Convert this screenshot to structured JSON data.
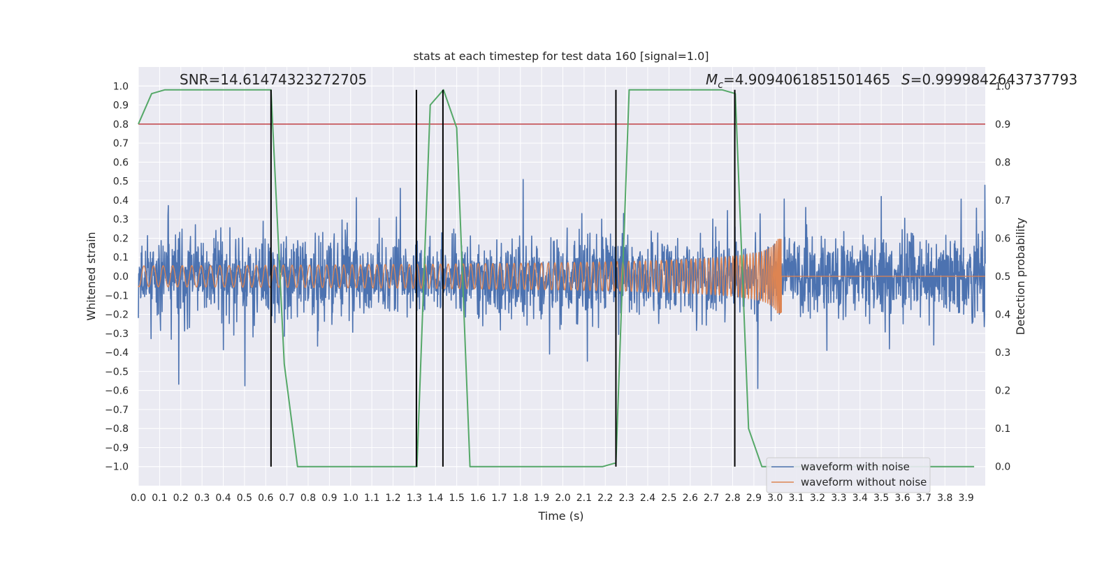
{
  "chart_data": {
    "type": "line",
    "title": "stats at each timestep for test data 160 [signal=1.0]",
    "xlabel": "Time (s)",
    "ylabel_left": "Whitened strain",
    "ylabel_right": "Detection probability",
    "xlim": [
      0.0,
      3.99
    ],
    "ylim_left": [
      -1.1,
      1.1
    ],
    "ylim_right": [
      -0.05,
      1.05
    ],
    "x_ticks": [
      "0.0",
      "0.1",
      "0.2",
      "0.3",
      "0.4",
      "0.5",
      "0.6",
      "0.7",
      "0.8",
      "0.9",
      "1.0",
      "1.1",
      "1.2",
      "1.3",
      "1.4",
      "1.5",
      "1.6",
      "1.7",
      "1.8",
      "1.9",
      "2.0",
      "2.1",
      "2.2",
      "2.3",
      "2.4",
      "2.5",
      "2.6",
      "2.7",
      "2.8",
      "2.9",
      "3.0",
      "3.1",
      "3.2",
      "3.3",
      "3.4",
      "3.5",
      "3.6",
      "3.7",
      "3.8",
      "3.9"
    ],
    "y_ticks_left": [
      "1.0",
      "0.9",
      "0.8",
      "0.7",
      "0.6",
      "0.5",
      "0.4",
      "0.3",
      "0.2",
      "0.1",
      "0.0",
      "−0.1",
      "−0.2",
      "−0.3",
      "−0.4",
      "−0.5",
      "−0.6",
      "−0.7",
      "−0.8",
      "−0.9",
      "−1.0"
    ],
    "y_ticks_right": [
      "1.0",
      "0.9",
      "0.8",
      "0.7",
      "0.6",
      "0.5",
      "0.4",
      "0.3",
      "0.2",
      "0.1",
      "0.0"
    ],
    "annotations": {
      "snr": "SNR=14.61474323272705",
      "mc_symbol": "M",
      "mc_subscript": "c",
      "mc_value": "=4.9094061851501465",
      "s_symbol": "S",
      "s_value": "=0.9999842643737793"
    },
    "threshold": {
      "value_right_axis": 0.9,
      "color": "#c44e52"
    },
    "vertical_markers_x": [
      0.625,
      1.31,
      1.435,
      2.25,
      2.81
    ],
    "vertical_marker_range_right": [
      0.0,
      0.99
    ],
    "detection_probability": {
      "name": "detection probability",
      "color": "#55a868",
      "x": [
        0.0,
        0.0625,
        0.125,
        0.1875,
        0.25,
        0.3125,
        0.375,
        0.4375,
        0.5,
        0.5625,
        0.625,
        0.6875,
        0.75,
        0.8125,
        0.875,
        0.9375,
        1.0,
        1.0625,
        1.125,
        1.1875,
        1.25,
        1.3125,
        1.375,
        1.4375,
        1.5,
        1.5625,
        1.625,
        1.6875,
        1.75,
        1.8125,
        1.875,
        1.9375,
        2.0,
        2.0625,
        2.125,
        2.1875,
        2.25,
        2.3125,
        2.375,
        2.4375,
        2.5,
        2.5625,
        2.625,
        2.6875,
        2.75,
        2.8125,
        2.875,
        2.9375,
        3.0,
        3.0625,
        3.125,
        3.1875,
        3.25,
        3.3125,
        3.375,
        3.4375,
        3.5,
        3.5625,
        3.625,
        3.6875,
        3.75,
        3.8125,
        3.875,
        3.9375
      ],
      "y": [
        0.9,
        0.98,
        0.99,
        0.99,
        0.99,
        0.99,
        0.99,
        0.99,
        0.99,
        0.99,
        0.99,
        0.27,
        0.0,
        0.0,
        0.0,
        0.0,
        0.0,
        0.0,
        0.0,
        0.0,
        0.0,
        0.0,
        0.95,
        0.99,
        0.89,
        0.0,
        0.0,
        0.0,
        0.0,
        0.0,
        0.0,
        0.0,
        0.0,
        0.0,
        0.0,
        0.0,
        0.01,
        0.99,
        0.99,
        0.99,
        0.99,
        0.99,
        0.99,
        0.99,
        0.99,
        0.98,
        0.1,
        0.0,
        0.0,
        0.0,
        0.0,
        0.0,
        0.0,
        0.0,
        0.0,
        0.0,
        0.0,
        0.0,
        0.0,
        0.0,
        0.0,
        0.0,
        0.0,
        0.0
      ]
    },
    "series": [
      {
        "name": "waveform with noise",
        "color": "#4c72b0"
      },
      {
        "name": "waveform without noise",
        "color": "#dd8452"
      }
    ],
    "legend_position": "lower right",
    "grid": true,
    "background_color": "#eaeaf2",
    "grid_color": "#ffffff"
  }
}
